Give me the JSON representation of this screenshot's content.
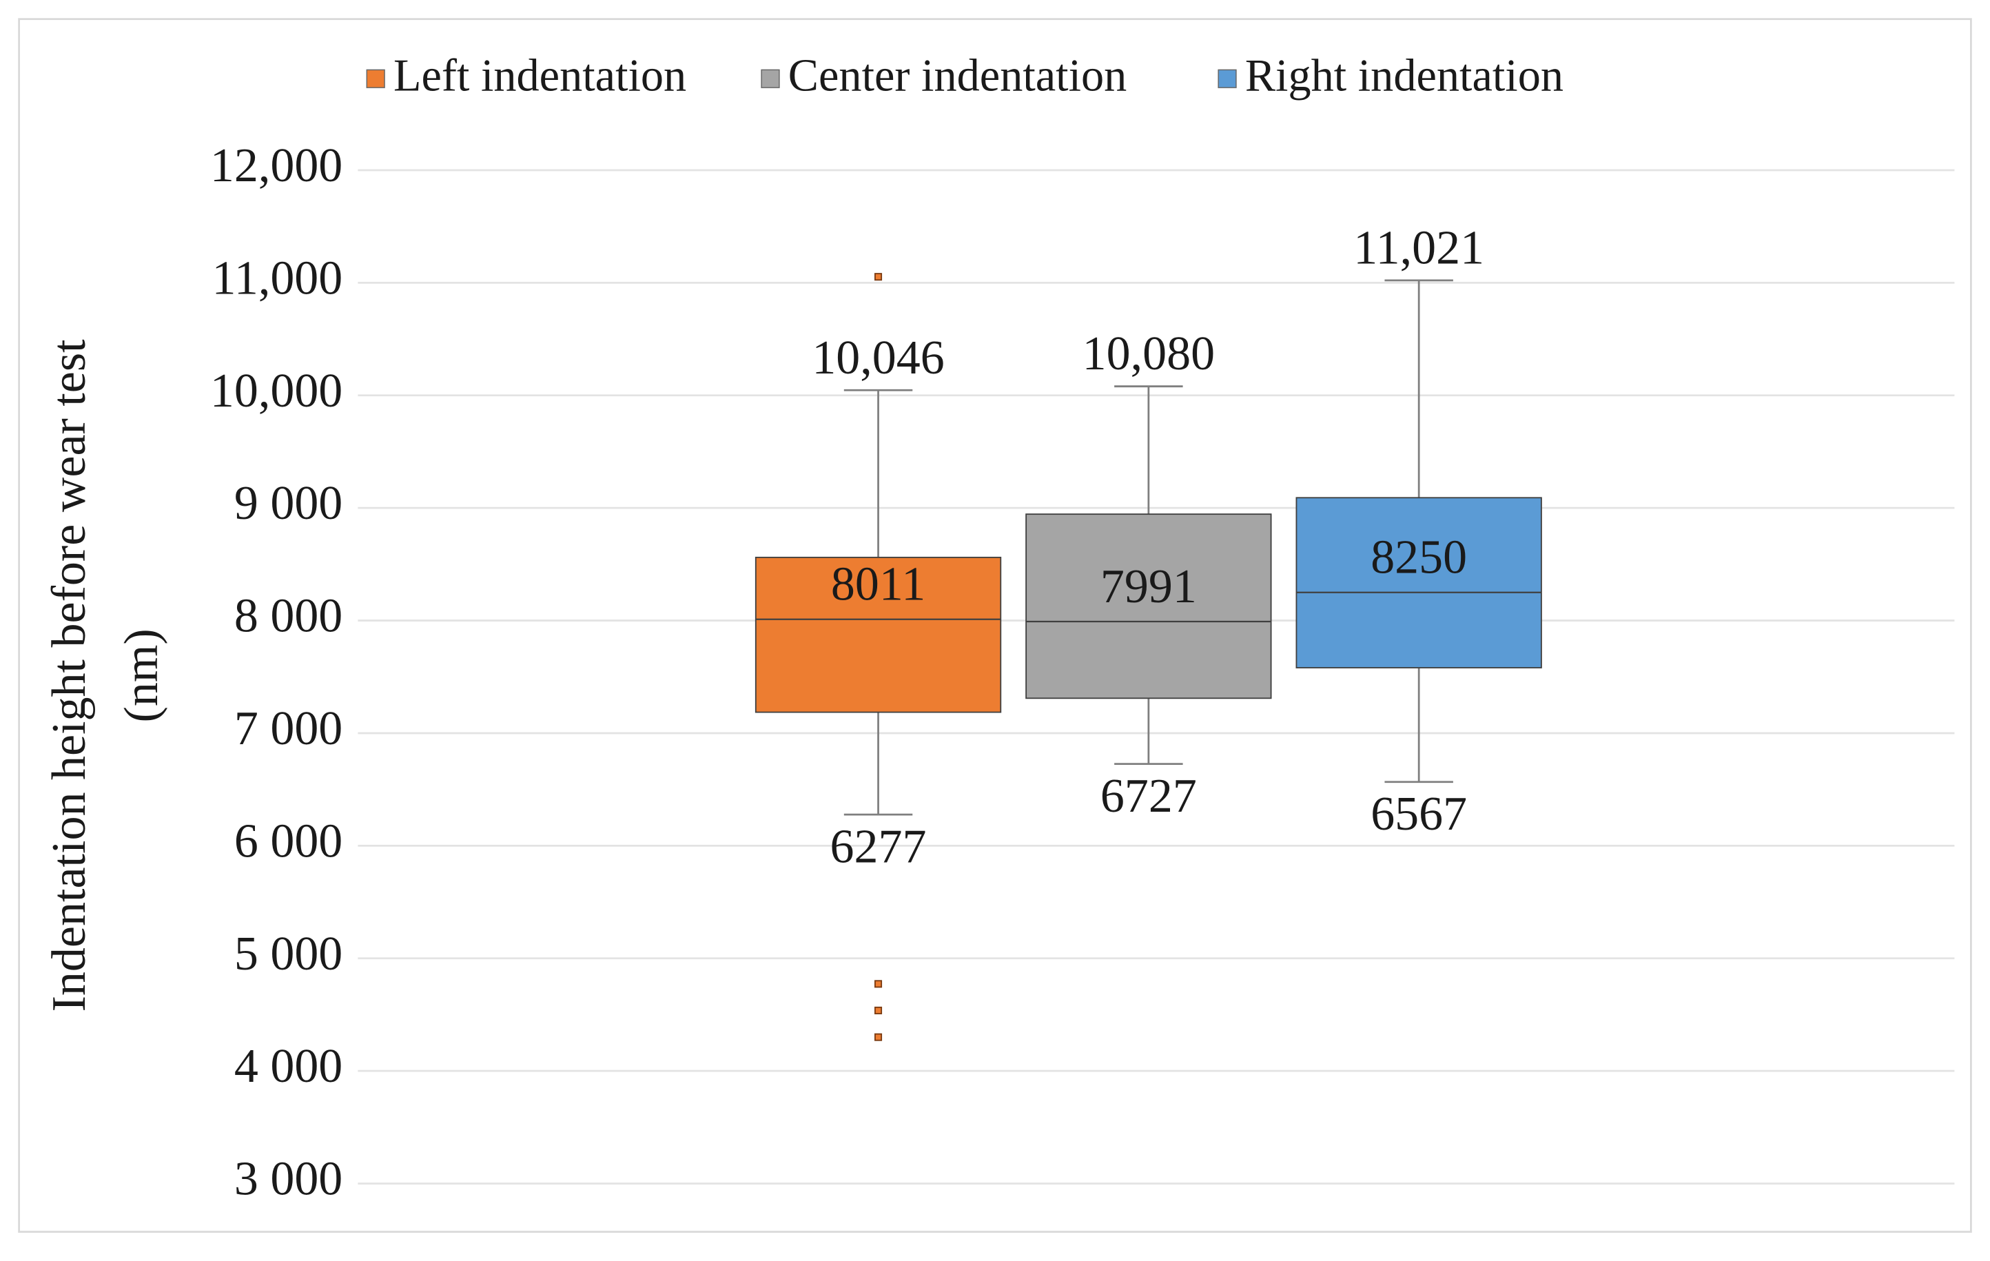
{
  "chart_data": {
    "type": "box",
    "y_label": [
      "Indentation height before wear test",
      "(nm)"
    ],
    "ylim": [
      3000,
      12000
    ],
    "yticks": [
      {
        "value": 3000,
        "label": "3 000"
      },
      {
        "value": 4000,
        "label": "4 000"
      },
      {
        "value": 5000,
        "label": "5 000"
      },
      {
        "value": 6000,
        "label": "6 000"
      },
      {
        "value": 7000,
        "label": "7 000"
      },
      {
        "value": 8000,
        "label": "8 000"
      },
      {
        "value": 9000,
        "label": "9 000"
      },
      {
        "value": 10000,
        "label": "10,000"
      },
      {
        "value": 11000,
        "label": "11,000"
      },
      {
        "value": 12000,
        "label": "12,000"
      }
    ],
    "grid": true,
    "legend": "top",
    "series": [
      {
        "name": "Left indentation",
        "color": "#ed7d31",
        "whisker_low": 6277,
        "q1": 7186,
        "median": 8011,
        "q3": 8561,
        "whisker_high": 10046,
        "whisker_high_label": "10,046",
        "outliers": [
          11053,
          4773,
          4537,
          4300
        ]
      },
      {
        "name": "Center indentation",
        "color": "#a5a5a5",
        "whisker_low": 6727,
        "q1": 7310,
        "median": 7991,
        "q3": 8945,
        "whisker_high": 10080,
        "whisker_high_label": "10,080",
        "outliers": []
      },
      {
        "name": "Right indentation",
        "color": "#5b9bd5",
        "whisker_low": 6567,
        "q1": 7581,
        "median": 8250,
        "q3": 9091,
        "whisker_high": 11021,
        "whisker_high_label": "11,021",
        "outliers": []
      }
    ]
  }
}
